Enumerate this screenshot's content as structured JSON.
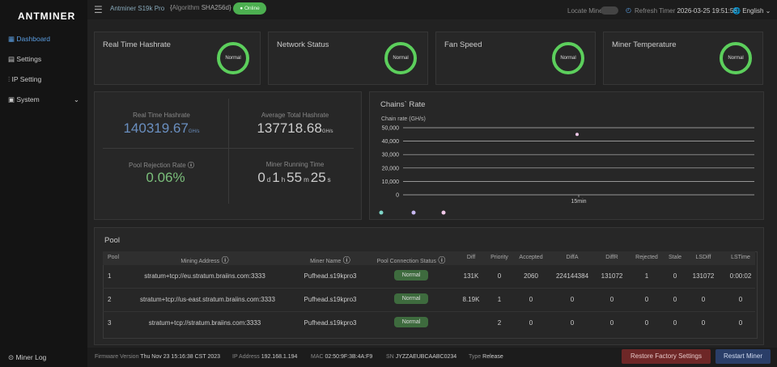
{
  "brand": "ANTMINER",
  "sidebar": {
    "items": [
      "Dashboard",
      "Settings",
      "IP Setting",
      "System"
    ],
    "footer": "Miner Log"
  },
  "header": {
    "model": "Antminer S19k Pro",
    "algorithm_label": "Algorithm",
    "algorithm": "SHA256d",
    "status": "Online",
    "locate": "Locate Miner",
    "refresh_label": "Refresh Timer",
    "time": "2026-03-25 19:51:56",
    "language": "English"
  },
  "cards": [
    {
      "title": "Real Time Hashrate",
      "badge": "Normal"
    },
    {
      "title": "Network Status",
      "badge": "Normal"
    },
    {
      "title": "Fan Speed",
      "badge": "Normal"
    },
    {
      "title": "Miner Temperature",
      "badge": "Normal"
    }
  ],
  "stats": {
    "realtime": {
      "label": "Real Time Hashrate",
      "value": "140319.67",
      "unit": "GH/s"
    },
    "average": {
      "label": "Average Total Hashrate",
      "value": "137718.68",
      "unit": "GH/s"
    },
    "rejection": {
      "label": "Pool Rejection Rate",
      "value": "0.06%"
    },
    "runtime": {
      "label": "Miner Running Time",
      "parts": [
        [
          "0",
          "d"
        ],
        [
          "1",
          "h"
        ],
        [
          "55",
          "m"
        ],
        [
          "25",
          "s"
        ]
      ]
    }
  },
  "chains": {
    "title": "Chains` Rate",
    "axis_label": "Chain rate (GH/s)",
    "ylim": [
      0,
      50000
    ],
    "yticks": [
      {
        "value": 0,
        "label": "0"
      },
      {
        "value": 10000,
        "label": "10,000"
      },
      {
        "value": 20000,
        "label": "20,000"
      },
      {
        "value": 30000,
        "label": "30,000"
      },
      {
        "value": 40000,
        "label": "40,000"
      },
      {
        "value": 50000,
        "label": "50,000"
      }
    ],
    "x_labels": [
      "15min"
    ],
    "series": [
      {
        "color": "#f0c8e8",
        "values": [
          45000
        ]
      }
    ]
  },
  "pool": {
    "title": "Pool",
    "headers": [
      "Pool",
      "Mining Address",
      "Miner Name",
      "Pool Connection Status",
      "Diff",
      "Priority",
      "Accepted",
      "DiffA",
      "DiffR",
      "Rejected",
      "Stale",
      "LSDiff",
      "LSTime"
    ],
    "rows": [
      [
        "1",
        "stratum+tcp://eu.stratum.braiins.com:3333",
        "Pufhead.s19kpro3",
        "Normal",
        "131K",
        "0",
        "2060",
        "224144384",
        "131072",
        "1",
        "0",
        "131072",
        "0:00:02"
      ],
      [
        "2",
        "stratum+tcp://us-east.stratum.braiins.com:3333",
        "Pufhead.s19kpro3",
        "Normal",
        "8.19K",
        "1",
        "0",
        "0",
        "0",
        "0",
        "0",
        "0",
        "0"
      ],
      [
        "3",
        "stratum+tcp://stratum.braiins.com:3333",
        "Pufhead.s19kpro3",
        "Normal",
        null,
        "2",
        "0",
        "0",
        "0",
        "0",
        "0",
        "0",
        "0"
      ]
    ]
  },
  "footer": {
    "firmware_label": "Firmware Version",
    "firmware": "Thu Nov 23 15:16:38 CST 2023",
    "ip_label": "IP Address",
    "ip": "192.168.1.194",
    "mac_label": "MAC",
    "mac": "02:50:9F:3B:4A:F9",
    "sn_label": "SN",
    "sn": "JYZZAEUBCAABC0234",
    "type_label": "Type",
    "type": "Release",
    "restore": "Restore Factory Settings",
    "restart": "Restart Miner"
  }
}
